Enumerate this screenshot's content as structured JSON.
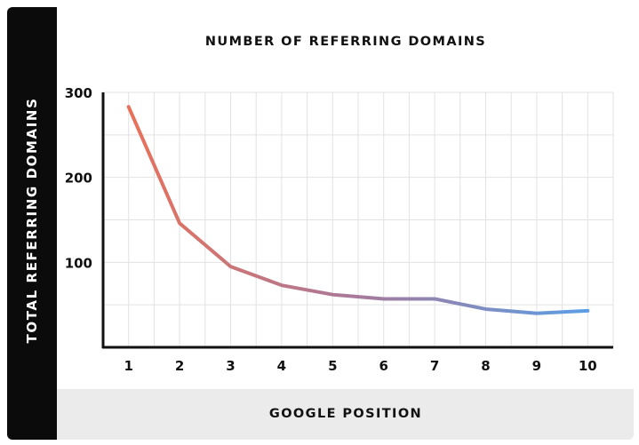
{
  "chart_data": {
    "type": "line",
    "title": "NUMBER OF REFERRING DOMAINS",
    "xlabel": "GOOGLE POSITION",
    "ylabel": "TOTAL REFERRING DOMAINS",
    "x": [
      1,
      2,
      3,
      4,
      5,
      6,
      7,
      8,
      9,
      10
    ],
    "x_tick_labels": [
      "1",
      "2",
      "3",
      "4",
      "5",
      "6",
      "7",
      "8",
      "9",
      "10"
    ],
    "y_tick_labels": [
      "100",
      "200",
      "300"
    ],
    "y_ticks": [
      100,
      200,
      300
    ],
    "ylim": [
      0,
      300
    ],
    "xlim": [
      0.5,
      10.5
    ],
    "grid": true,
    "legend": "none",
    "series": [
      {
        "values": [
          283,
          146,
          95,
          73,
          62,
          57,
          57,
          45,
          40,
          43
        ]
      }
    ],
    "colors": {
      "line_start": "#e8715a",
      "line_mid": "#a77a9b",
      "line_end": "#5b9ee4",
      "grid": "#e2e2e2",
      "axis": "#111111"
    }
  }
}
